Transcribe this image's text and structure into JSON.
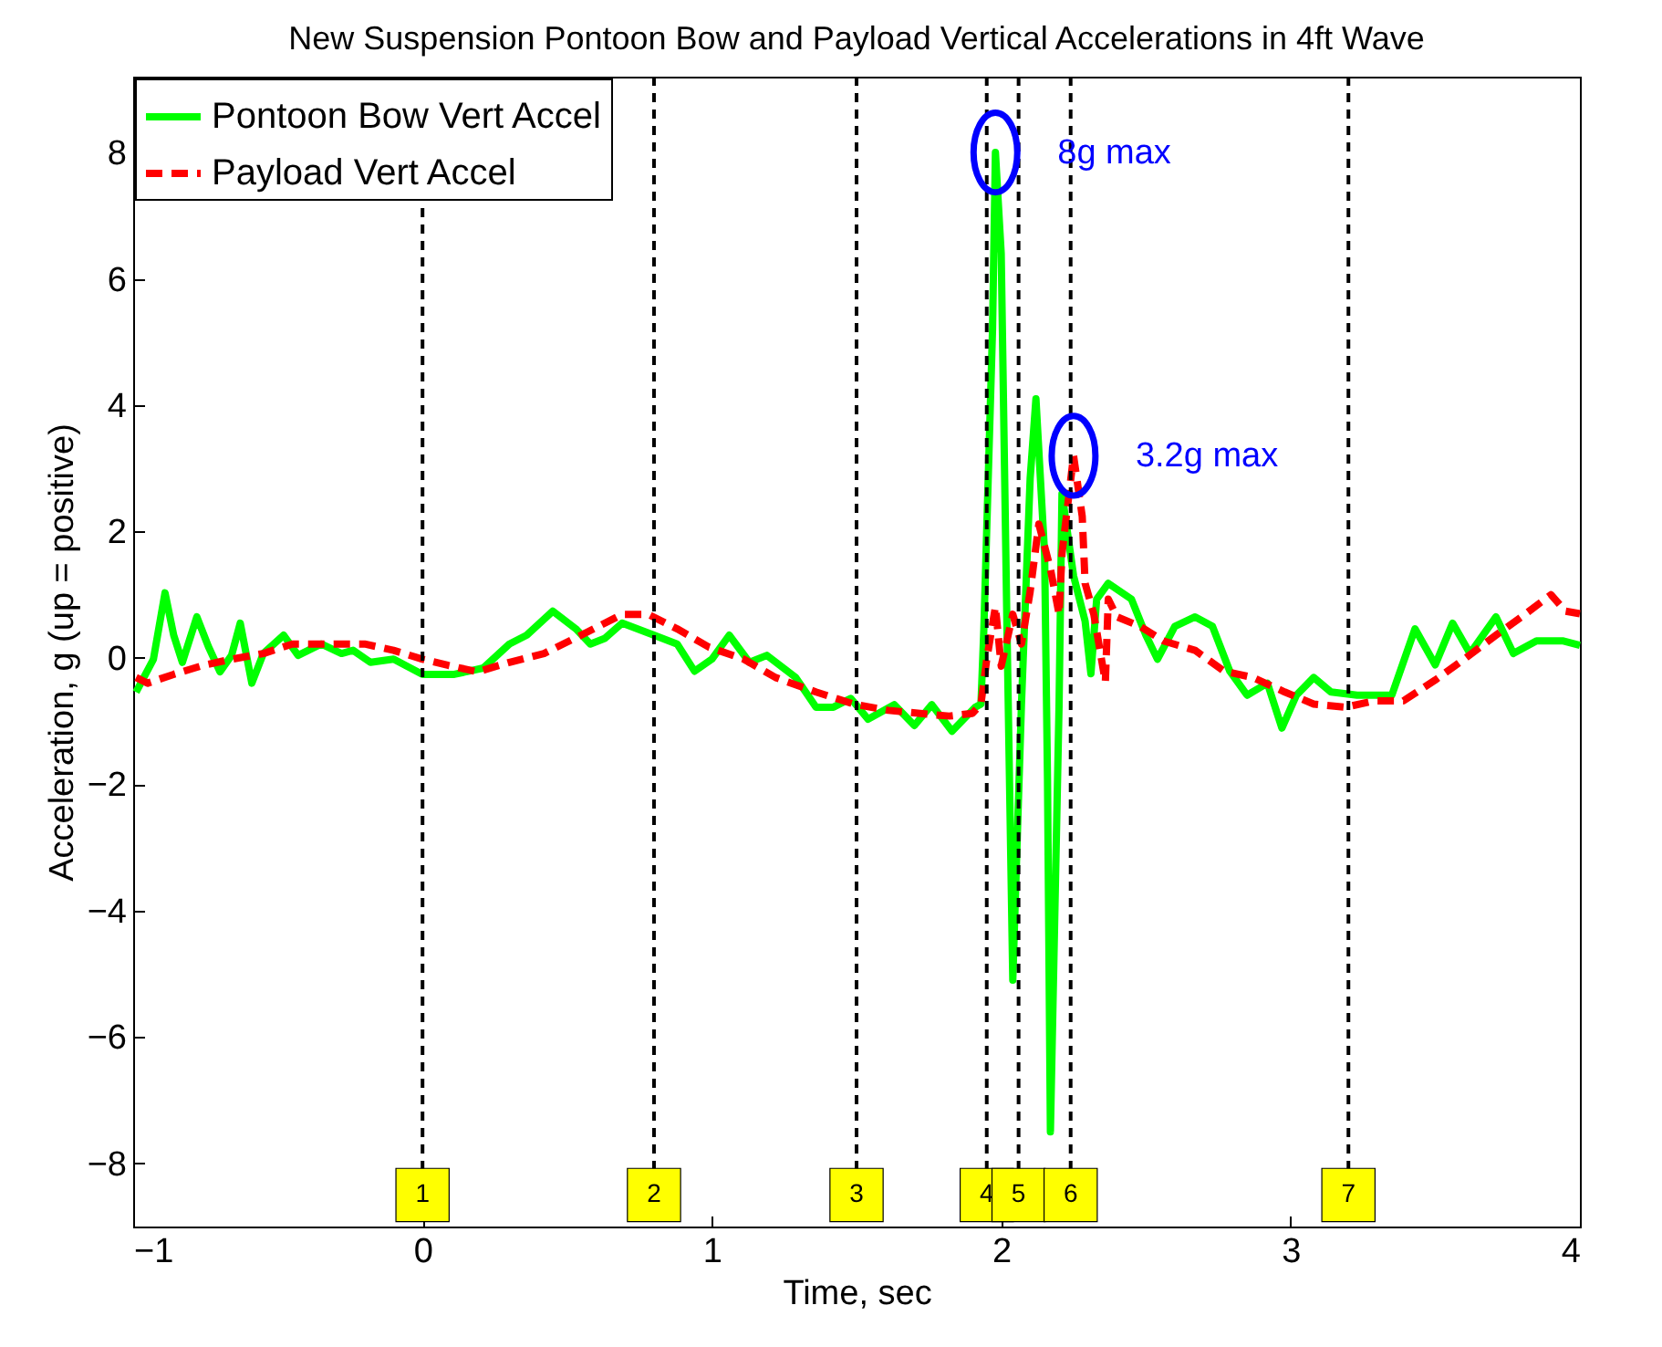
{
  "chart_data": {
    "type": "line",
    "title": "New Suspension Pontoon Bow and Payload Vertical Accelerations in 4ft Wave",
    "xlabel": "Time, sec",
    "ylabel": "Acceleration, g (up = positive)",
    "xlim": [
      -1,
      4
    ],
    "xticks": [
      -1,
      0,
      1,
      2,
      3,
      4
    ],
    "ylim": [
      -9,
      9.2
    ],
    "yticks": [
      -8,
      -6,
      -4,
      -2,
      0,
      2,
      4,
      6,
      8
    ],
    "grid": false,
    "legend": "top left",
    "marker": "none",
    "series": [
      {
        "name": "Pontoon Bow Vert Accel",
        "color": "#00ff00",
        "line_style": "solid",
        "x": [
          -0.99,
          -0.93,
          -0.89,
          -0.86,
          -0.83,
          -0.78,
          -0.74,
          -0.7,
          -0.66,
          -0.63,
          -0.59,
          -0.55,
          -0.48,
          -0.43,
          -0.35,
          -0.28,
          -0.24,
          -0.18,
          -0.1,
          0,
          0.11,
          0.21,
          0.3,
          0.36,
          0.45,
          0.53,
          0.58,
          0.63,
          0.69,
          0.8,
          0.88,
          0.94,
          1,
          1.06,
          1.13,
          1.19,
          1.29,
          1.36,
          1.42,
          1.48,
          1.54,
          1.63,
          1.7,
          1.76,
          1.83,
          1.91,
          1.93,
          1.94,
          1.97,
          1.98,
          2,
          2.02,
          2.04,
          2.07,
          2.1,
          2.12,
          2.15,
          2.16,
          2.17,
          2.2,
          2.21,
          2.25,
          2.29,
          2.31,
          2.33,
          2.37,
          2.45,
          2.5,
          2.54,
          2.6,
          2.67,
          2.73,
          2.79,
          2.85,
          2.92,
          2.97,
          3.02,
          3.08,
          3.14,
          3.23,
          3.35,
          3.43,
          3.5,
          3.56,
          3.62,
          3.71,
          3.77,
          3.85,
          3.94,
          4
        ],
        "values": [
          -0.54,
          -0.02,
          1.03,
          0.36,
          -0.07,
          0.65,
          0.18,
          -0.22,
          0.04,
          0.55,
          -0.4,
          0.07,
          0.36,
          0.04,
          0.22,
          0.07,
          0.12,
          -0.07,
          -0.02,
          -0.26,
          -0.26,
          -0.16,
          0.22,
          0.36,
          0.74,
          0.46,
          0.22,
          0.31,
          0.55,
          0.36,
          0.22,
          -0.21,
          -0.02,
          0.36,
          -0.07,
          0.04,
          -0.31,
          -0.78,
          -0.78,
          -0.64,
          -0.97,
          -0.74,
          -1.07,
          -0.74,
          -1.16,
          -0.78,
          -0.73,
          0.46,
          5.2,
          8,
          6.4,
          0.46,
          -5.1,
          -0.73,
          2.84,
          4.1,
          1.65,
          -1.93,
          -7.5,
          -0.73,
          2.6,
          1.3,
          0.58,
          -0.25,
          0.93,
          1.18,
          0.93,
          0.36,
          -0.02,
          0.5,
          0.65,
          0.5,
          -0.21,
          -0.59,
          -0.4,
          -1.11,
          -0.59,
          -0.31,
          -0.54,
          -0.59,
          -0.59,
          0.46,
          -0.11,
          0.55,
          0.07,
          0.65,
          0.07,
          0.27,
          0.27,
          0.2
        ]
      },
      {
        "name": "Payload Vert Accel",
        "color": "#ff0000",
        "line_style": "dashed",
        "x": [
          -0.99,
          -0.95,
          -0.86,
          -0.76,
          -0.66,
          -0.55,
          -0.45,
          -0.35,
          -0.2,
          -0.1,
          0,
          0.09,
          0.19,
          0.3,
          0.42,
          0.57,
          0.69,
          0.78,
          0.88,
          0.99,
          1.11,
          1.22,
          1.36,
          1.49,
          1.61,
          1.72,
          1.82,
          1.9,
          1.93,
          1.95,
          1.98,
          2,
          2.04,
          2.07,
          2.1,
          2.13,
          2.17,
          2.2,
          2.21,
          2.25,
          2.28,
          2.29,
          2.32,
          2.36,
          2.37,
          2.4,
          2.48,
          2.56,
          2.67,
          2.77,
          2.87,
          2.98,
          3.08,
          3.19,
          3.29,
          3.39,
          3.5,
          3.6,
          3.71,
          3.81,
          3.9,
          3.95,
          4
        ],
        "values": [
          -0.31,
          -0.4,
          -0.26,
          -0.12,
          -0.02,
          0.07,
          0.22,
          0.22,
          0.22,
          0.12,
          -0.02,
          -0.12,
          -0.22,
          -0.07,
          0.07,
          0.41,
          0.69,
          0.69,
          0.46,
          0.17,
          -0.02,
          -0.31,
          -0.54,
          -0.73,
          -0.83,
          -0.88,
          -0.92,
          -0.88,
          -0.73,
          -0.02,
          0.81,
          -0.13,
          0.69,
          0.22,
          1.05,
          2.12,
          1.41,
          0.69,
          1.65,
          3.2,
          2.24,
          1.18,
          0.69,
          -0.38,
          0.93,
          0.65,
          0.5,
          0.27,
          0.12,
          -0.21,
          -0.31,
          -0.54,
          -0.73,
          -0.78,
          -0.68,
          -0.68,
          -0.35,
          -0.02,
          0.36,
          0.69,
          1,
          0.74,
          0.7
        ]
      }
    ],
    "ref_lines": [
      {
        "axis": "x",
        "value": 0,
        "color": "#000000",
        "line_style": "dashed"
      },
      {
        "axis": "x",
        "value": 0.8,
        "color": "#000000",
        "line_style": "dashed"
      },
      {
        "axis": "x",
        "value": 1.5,
        "color": "#000000",
        "line_style": "dashed"
      },
      {
        "axis": "x",
        "value": 1.95,
        "color": "#000000",
        "line_style": "dashed"
      },
      {
        "axis": "x",
        "value": 2.06,
        "color": "#000000",
        "line_style": "dashed"
      },
      {
        "axis": "x",
        "value": 2.24,
        "color": "#000000",
        "line_style": "dashed"
      },
      {
        "axis": "x",
        "value": 3.2,
        "color": "#000000",
        "line_style": "dashed"
      }
    ],
    "annotations": [
      {
        "text": "8g max",
        "x": 1.98,
        "y": 8
      },
      {
        "text": "3.2g max",
        "x": 2.25,
        "y": 3.2
      },
      {
        "text": "1",
        "x": 0,
        "y": -8.5
      },
      {
        "text": "2",
        "x": 0.8,
        "y": -8.5
      },
      {
        "text": "3",
        "x": 1.5,
        "y": -8.5
      },
      {
        "text": "4",
        "x": 1.95,
        "y": -8.5
      },
      {
        "text": "5",
        "x": 2.06,
        "y": -8.5
      },
      {
        "text": "6",
        "x": 2.24,
        "y": -8.5
      },
      {
        "text": "7",
        "x": 3.2,
        "y": -8.5
      }
    ]
  }
}
